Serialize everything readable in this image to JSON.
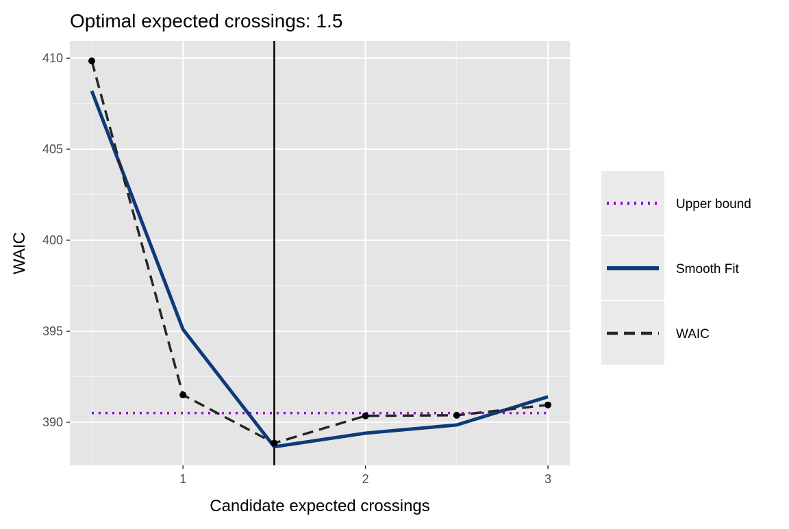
{
  "chart_data": {
    "type": "line",
    "title": "Optimal expected crossings: 1.5",
    "xlabel": "Candidate expected crossings",
    "ylabel": "WAIC",
    "xlim": [
      0.38,
      3.12
    ],
    "ylim": [
      387.63,
      410.94
    ],
    "x_ticks": [
      1,
      2,
      3
    ],
    "x_tick_labels": [
      "1",
      "2",
      "3"
    ],
    "y_ticks": [
      390,
      395,
      400,
      405,
      410
    ],
    "y_tick_labels": [
      "390",
      "395",
      "400",
      "405",
      "410"
    ],
    "grid": true,
    "vline": 1.5,
    "legend_position": "right",
    "series": [
      {
        "name": "Upper bound",
        "style": "dotted",
        "color": "#9400D3",
        "x": [
          0.5,
          3
        ],
        "values": [
          390.5,
          390.5
        ]
      },
      {
        "name": "Smooth Fit",
        "style": "solid",
        "color": "#0E3A7A",
        "x": [
          0.5,
          1,
          1.5,
          2,
          2.5,
          3
        ],
        "values": [
          408.2,
          395.1,
          388.65,
          389.4,
          389.85,
          391.4
        ]
      },
      {
        "name": "WAIC",
        "style": "dashed",
        "color": "#262626",
        "points": true,
        "x": [
          0.5,
          1,
          1.5,
          2,
          2.5,
          3
        ],
        "values": [
          409.85,
          391.5,
          388.85,
          390.35,
          390.38,
          390.95
        ]
      }
    ]
  }
}
